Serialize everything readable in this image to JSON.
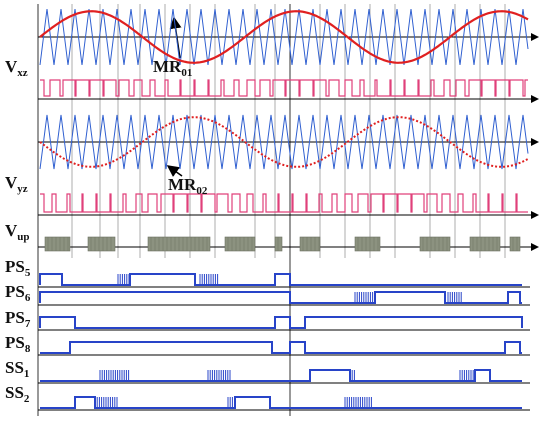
{
  "labels": [
    {
      "base": "V",
      "sub": "xz"
    },
    {
      "base": "V",
      "sub": "yz"
    },
    {
      "base": "V",
      "sub": "up"
    },
    {
      "base": "PS",
      "sub": "5"
    },
    {
      "base": "PS",
      "sub": "6"
    },
    {
      "base": "PS",
      "sub": "7"
    },
    {
      "base": "PS",
      "sub": "8"
    },
    {
      "base": "SS",
      "sub": "1"
    },
    {
      "base": "SS",
      "sub": "2"
    }
  ],
  "annotations": [
    {
      "base": "MR",
      "sub": "01"
    },
    {
      "base": "MR",
      "sub": "02"
    }
  ]
}
